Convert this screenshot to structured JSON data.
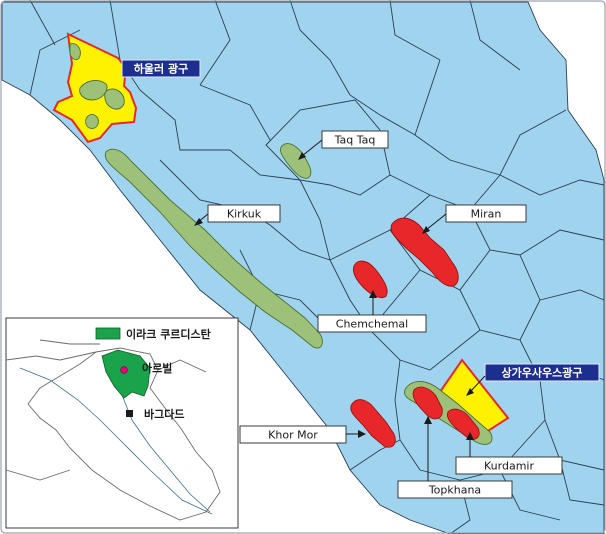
{
  "labels": {
    "hawler": "하울러 광구",
    "taq_taq": "Taq Taq",
    "kirkuk": "Kirkuk",
    "miran": "Miran",
    "chemchemal": "Chemchemal",
    "sangaw_south": "상가우사우스광구",
    "khor_mor": "Khor Mor",
    "kurdamir": "Kurdamir",
    "topkhana": "Topkhana"
  },
  "inset": {
    "legend": "이라크 쿠르디스탄",
    "erbil": "아르빌",
    "baghdad": "바그다드"
  },
  "colors": {
    "background_blue": "#9fd3ee",
    "field_green": "#9ec17a",
    "field_red": "#e8272a",
    "licence_yellow": "#fff200",
    "label_dark_blue": "#1c2f8f",
    "kurdistan_green": "#1aa34a",
    "erbil_marker": "#e6007e"
  }
}
